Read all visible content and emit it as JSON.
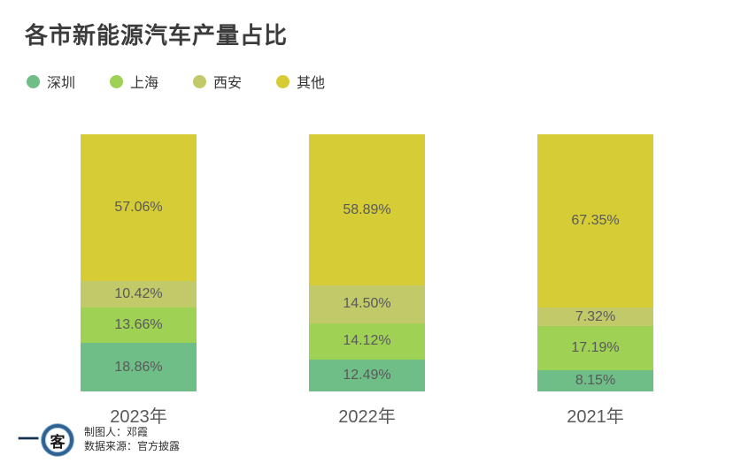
{
  "title": "各市新能源汽车产量占比",
  "colors": {
    "shenzhen": "#6fbe87",
    "shanghai": "#9fd254",
    "xian": "#c2c969",
    "other": "#d6cc35",
    "value_label_text": "#595959",
    "axis_label_text": "#595959",
    "title_text": "#3c3c3c",
    "logo_ring_blue": "#2e6292"
  },
  "legend": [
    {
      "label": "深圳",
      "color": "#6fbe87"
    },
    {
      "label": "上海",
      "color": "#9fd254"
    },
    {
      "label": "西安",
      "color": "#c2c969"
    },
    {
      "label": "其他",
      "color": "#d6cc35"
    }
  ],
  "chart_data": {
    "type": "bar",
    "stacked": true,
    "percent_stack": true,
    "unit": "%",
    "categories": [
      "2023年",
      "2022年",
      "2021年"
    ],
    "series": [
      {
        "name": "深圳",
        "color": "#6fbe87",
        "values": [
          18.86,
          12.49,
          8.15
        ],
        "labels": [
          "18.86%",
          "12.49%",
          "8.15%"
        ]
      },
      {
        "name": "上海",
        "color": "#9fd254",
        "values": [
          13.66,
          14.12,
          17.19
        ],
        "labels": [
          "13.66%",
          "14.12%",
          "17.19%"
        ]
      },
      {
        "name": "西安",
        "color": "#c2c969",
        "values": [
          10.42,
          14.5,
          7.32
        ],
        "labels": [
          "10.42%",
          "14.50%",
          "7.32%"
        ]
      },
      {
        "name": "其他",
        "color": "#d6cc35",
        "values": [
          57.06,
          58.89,
          67.35
        ],
        "labels": [
          "57.06%",
          "58.89%",
          "67.35%"
        ]
      }
    ],
    "title": "各市新能源汽车产量占比",
    "xlabel": "",
    "ylabel": "",
    "ylim": [
      0,
      100
    ],
    "grid": false,
    "legend_position": "top",
    "value_labels": true
  },
  "footer": {
    "logo_text_left": "一",
    "logo_text_circle": "客",
    "credit_line1": "制图人：邓霞",
    "credit_line2": "数据来源：官方披露"
  }
}
